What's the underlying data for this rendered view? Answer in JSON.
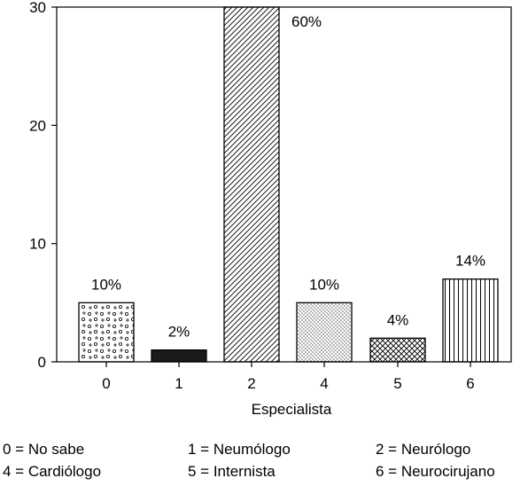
{
  "chart_data": {
    "type": "bar",
    "xlabel": "Especialista",
    "categories": [
      "0",
      "1",
      "2",
      "4",
      "5",
      "6"
    ],
    "values": [
      5,
      1,
      30,
      5,
      2,
      7
    ],
    "labels": [
      "10%",
      "2%",
      "60%",
      "10%",
      "4%",
      "14%"
    ],
    "patterns": [
      "circles",
      "solid",
      "diagonal-hatch",
      "dots",
      "crosshatch",
      "vertical-lines"
    ],
    "ylim": [
      0,
      30
    ],
    "yticks": [
      0,
      10,
      20,
      30
    ],
    "grid": false,
    "colors": {
      "stroke": "#000000",
      "background": "#ffffff"
    }
  },
  "legend": [
    [
      "0 = No sabe",
      "1 = Neumólogo",
      "2 = Neurólogo"
    ],
    [
      "4 = Cardiólogo",
      "5 = Internista",
      "6 = Neurocirujano"
    ]
  ]
}
